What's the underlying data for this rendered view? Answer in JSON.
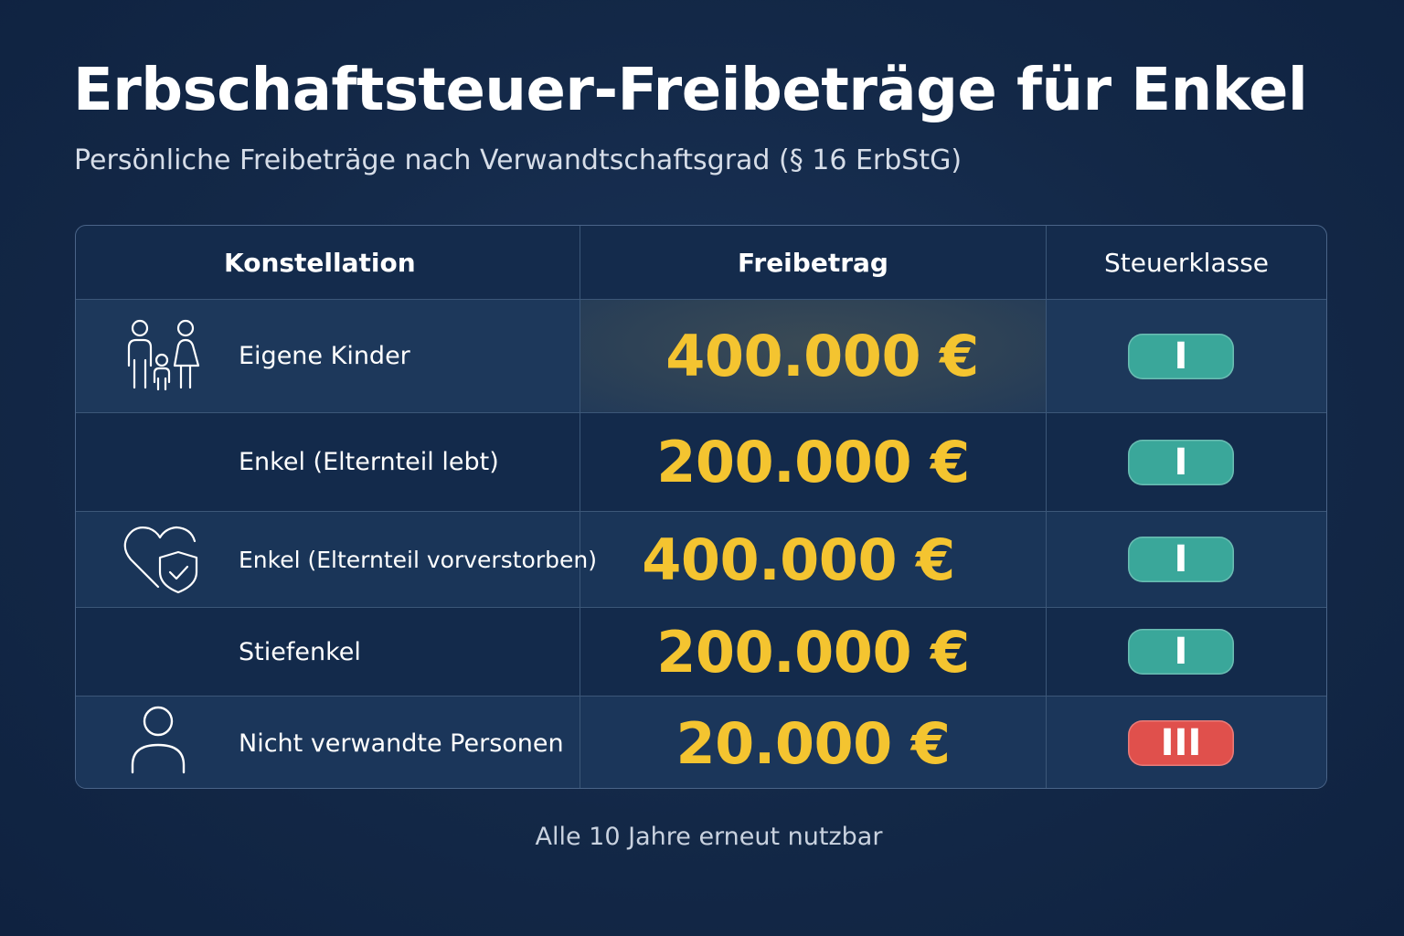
{
  "title": "Erbschaftsteuer-Freibeträge für Enkel",
  "subtitle": "Persönliche Freibeträge nach Verwandtschaftsgrad (§ 16 ErbStG)",
  "colors": {
    "background": "#132847",
    "amount": "#f4c430",
    "class_I": "#3aa79a",
    "class_III": "#e0504c",
    "highlight": "#2c3f52"
  },
  "chart_data": {
    "type": "table",
    "columns": [
      "Konstellation",
      "Freibetrag",
      "Steuerklasse"
    ],
    "rows": [
      {
        "constellation": "Eigene Kinder",
        "amount": "400.000 €",
        "value": 400000,
        "tax_class": "I",
        "icon": "family-icon",
        "highlight": true
      },
      {
        "constellation": "Enkel (Elternteil lebt)",
        "amount": "200.000 €",
        "value": 200000,
        "tax_class": "I",
        "icon": "",
        "highlight": false
      },
      {
        "constellation": "Enkel (Elternteil vorverstorben)",
        "amount": "400.000 €",
        "value": 400000,
        "tax_class": "I",
        "icon": "heart-shield-icon",
        "highlight": false
      },
      {
        "constellation": "Stiefenkel",
        "amount": "200.000 €",
        "value": 200000,
        "tax_class": "I",
        "icon": "",
        "highlight": false
      },
      {
        "constellation": "Nicht verwandte Personen",
        "amount": "20.000 €",
        "value": 20000,
        "tax_class": "III",
        "icon": "person-icon",
        "highlight": false
      }
    ]
  },
  "footer": "Alle 10 Jahre erneut nutzbar"
}
